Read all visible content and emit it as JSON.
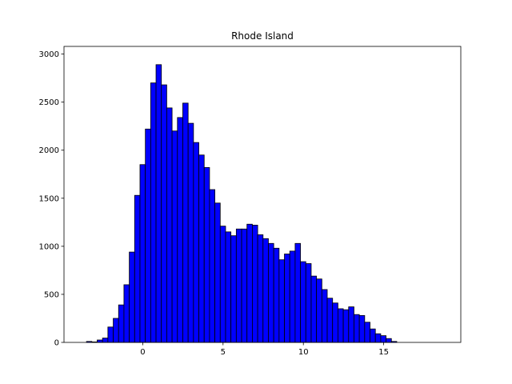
{
  "chart_data": {
    "type": "bar",
    "title": "Rhode Island",
    "xlabel": "",
    "ylabel": "",
    "xlim": [
      -4.9,
      19.8
    ],
    "ylim": [
      0,
      3080
    ],
    "xticks": [
      0,
      5,
      10,
      15
    ],
    "yticks": [
      0,
      500,
      1000,
      1500,
      2000,
      2500,
      3000
    ],
    "bar_color": "#0000ff",
    "edge_color": "#000000",
    "bin_width": 0.333,
    "bin_start": -3.5,
    "values": [
      10,
      5,
      25,
      45,
      160,
      250,
      390,
      600,
      940,
      1530,
      1850,
      2220,
      2700,
      2890,
      2680,
      2440,
      2200,
      2340,
      2490,
      2280,
      2080,
      1950,
      1820,
      1590,
      1450,
      1210,
      1150,
      1110,
      1180,
      1180,
      1230,
      1220,
      1120,
      1080,
      1030,
      980,
      860,
      920,
      950,
      1030,
      840,
      820,
      690,
      660,
      550,
      460,
      410,
      350,
      340,
      370,
      290,
      280,
      210,
      140,
      90,
      70,
      40,
      10
    ]
  }
}
